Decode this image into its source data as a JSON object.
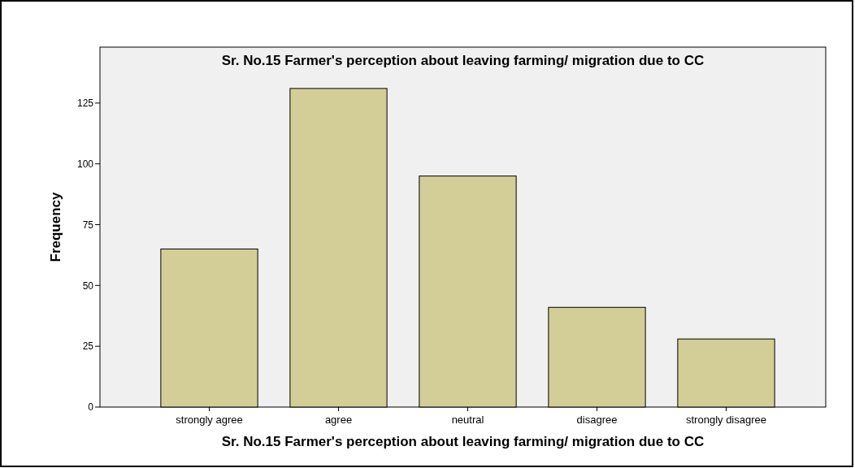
{
  "chart_data": {
    "type": "bar",
    "title": "Sr. No.15 Farmer's perception about leaving farming/ migration due to CC",
    "xlabel": "Sr. No.15 Farmer's perception about leaving farming/ migration due to CC",
    "ylabel": "Frequency",
    "categories": [
      "strongly agree",
      "agree",
      "neutral",
      "disagree",
      "strongly disagree"
    ],
    "values": [
      65,
      131,
      95,
      41,
      28
    ],
    "color": "#d3cd97",
    "ylim": [
      0,
      148
    ],
    "yticks": [
      0,
      25,
      50,
      75,
      100,
      125
    ],
    "grid": false
  }
}
